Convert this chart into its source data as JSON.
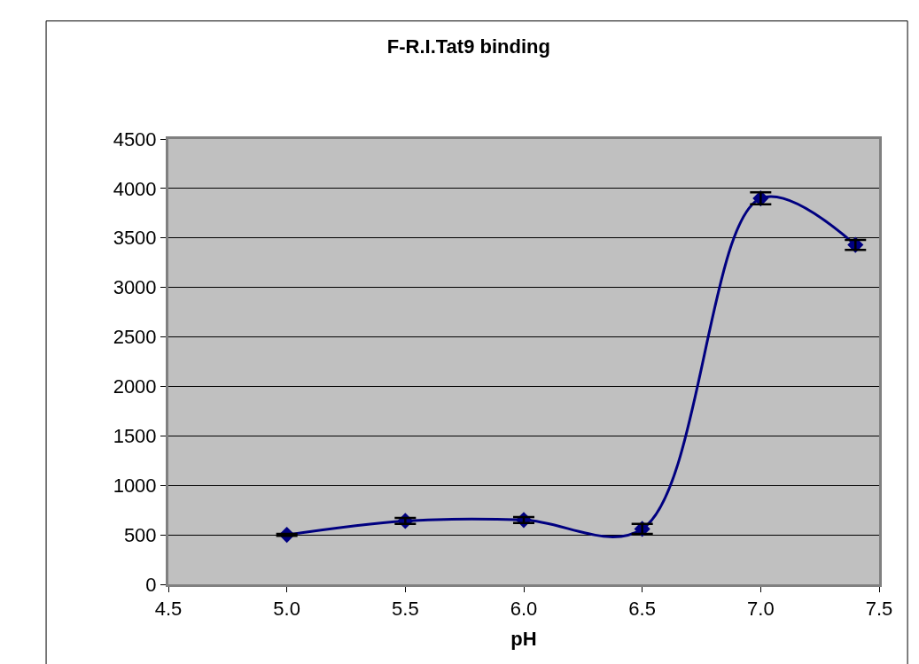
{
  "chart_data": {
    "type": "line",
    "title": "F-R.I.Tat9 binding",
    "xlabel": "pH",
    "x": [
      5.0,
      5.5,
      6.0,
      6.5,
      7.0,
      7.4
    ],
    "series": [
      {
        "color": "#000080",
        "values": [
          500,
          640,
          650,
          560,
          3900,
          3430
        ],
        "errors": [
          10,
          30,
          30,
          50,
          60,
          50
        ]
      }
    ],
    "xlim": [
      4.5,
      7.5
    ],
    "xticks": [
      {
        "value": 4.5,
        "label": "4.5"
      },
      {
        "value": 5.0,
        "label": "5.0"
      },
      {
        "value": 5.5,
        "label": "5.5"
      },
      {
        "value": 6.0,
        "label": "6.0"
      },
      {
        "value": 6.5,
        "label": "6.5"
      },
      {
        "value": 7.0,
        "label": "7.0"
      },
      {
        "value": 7.5,
        "label": "7.5"
      }
    ],
    "ylim": [
      0,
      4500
    ],
    "yticks": [
      0,
      500,
      1000,
      1500,
      2000,
      2500,
      3000,
      3500,
      4000,
      4500
    ],
    "grid": "y",
    "marker": "diamond",
    "line_style": "solid"
  }
}
